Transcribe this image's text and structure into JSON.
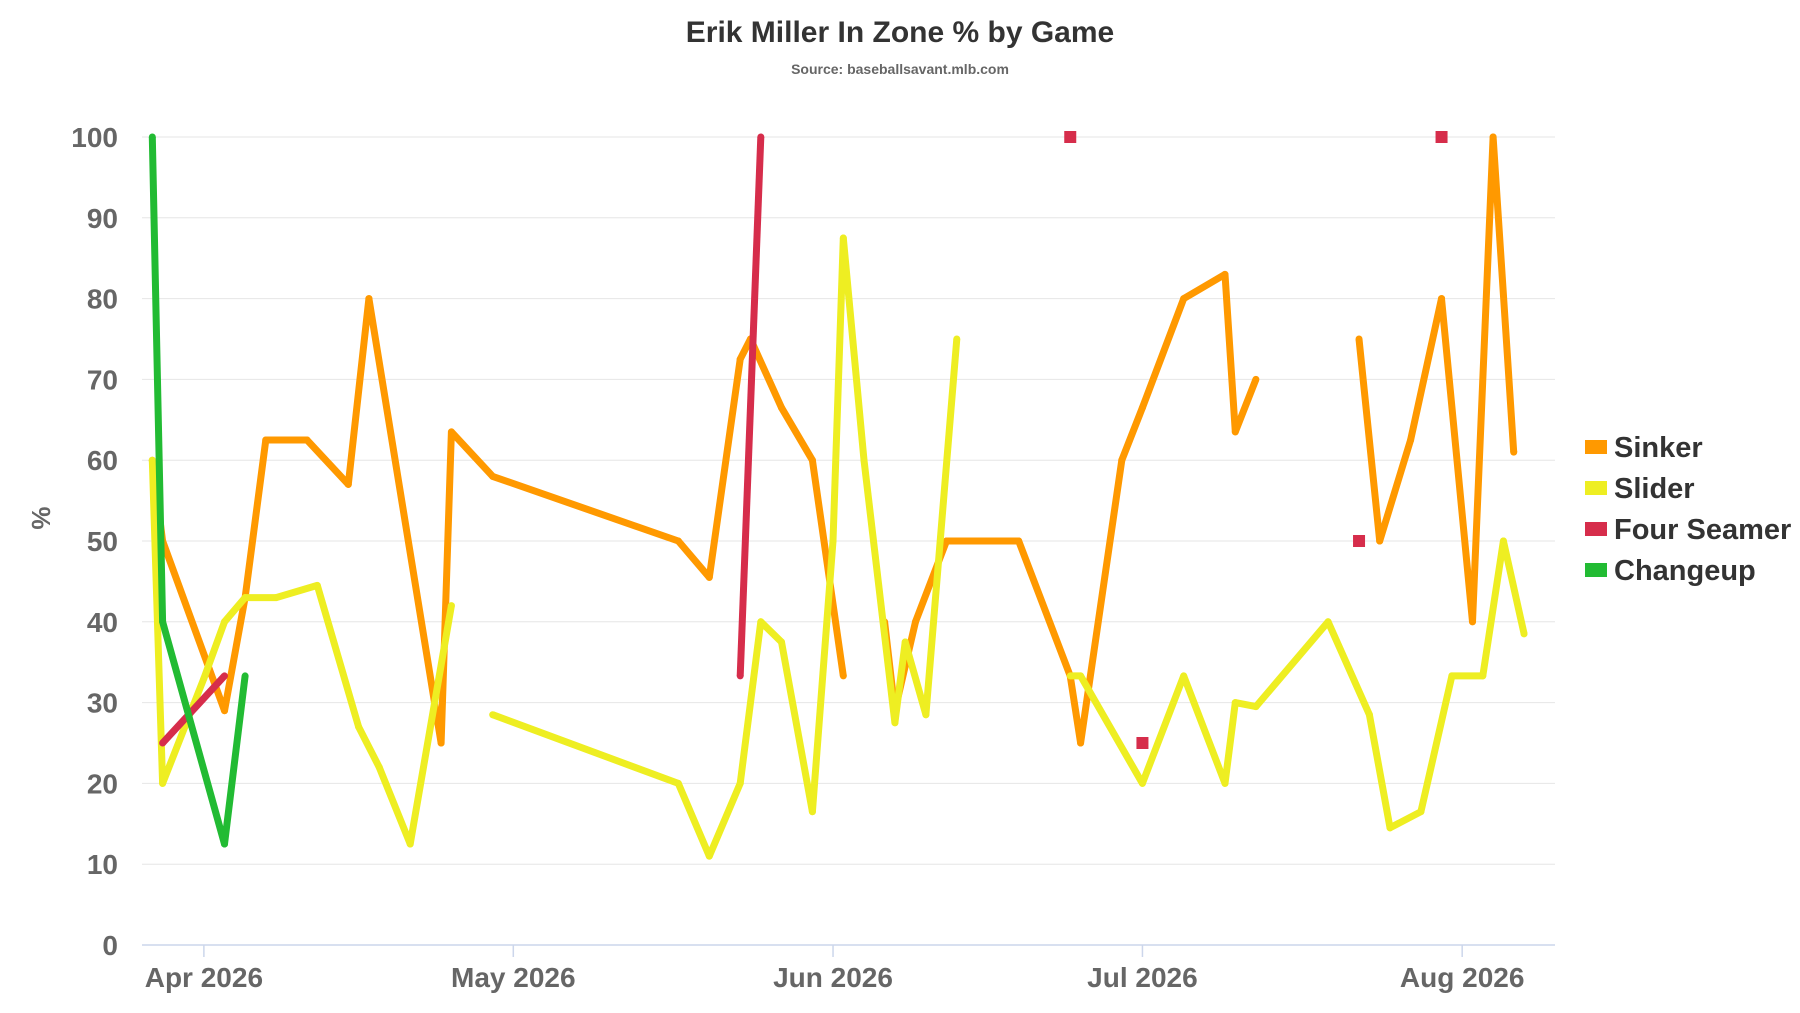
{
  "chart_data": {
    "type": "line",
    "title": "Erik Miller In Zone % by Game",
    "subtitle": "Source: baseballsavant.mlb.com",
    "ylabel": "%",
    "ylim": [
      0,
      100
    ],
    "yticks": [
      0,
      10,
      20,
      30,
      40,
      50,
      60,
      70,
      80,
      90,
      100
    ],
    "xlim": [
      "2026-03-26",
      "2026-08-10"
    ],
    "xticks": [
      {
        "date": "2026-04-01",
        "label": "Apr 2026"
      },
      {
        "date": "2026-05-01",
        "label": "May 2026"
      },
      {
        "date": "2026-06-01",
        "label": "Jun 2026"
      },
      {
        "date": "2026-07-01",
        "label": "Jul 2026"
      },
      {
        "date": "2026-08-01",
        "label": "Aug 2026"
      }
    ],
    "grid": true,
    "legend_position": "right",
    "series": [
      {
        "name": "Sinker",
        "color": "#ff9900",
        "points": [
          [
            "2026-03-27",
            60
          ],
          [
            "2026-03-28",
            50
          ],
          [
            "2026-04-03",
            29
          ],
          [
            "2026-04-05",
            43
          ],
          [
            "2026-04-07",
            62.5
          ],
          [
            "2026-04-11",
            62.5
          ],
          [
            "2026-04-15",
            57
          ],
          [
            "2026-04-17",
            80
          ],
          [
            "2026-04-24",
            25
          ],
          [
            "2026-04-25",
            63.5
          ],
          [
            "2026-04-29",
            58
          ],
          [
            "2026-05-17",
            50
          ],
          [
            "2026-05-20",
            45.5
          ],
          [
            "2026-05-23",
            72.5
          ],
          [
            "2026-05-24",
            75
          ],
          [
            "2026-05-27",
            66.5
          ],
          [
            "2026-05-30",
            60
          ],
          [
            "2026-06-02",
            33.3
          ],
          null,
          [
            "2026-06-06",
            40
          ],
          [
            "2026-06-07",
            29
          ],
          [
            "2026-06-09",
            40
          ],
          [
            "2026-06-12",
            50
          ],
          [
            "2026-06-19",
            50
          ],
          [
            "2026-06-24",
            33.3
          ],
          [
            "2026-06-25",
            25
          ],
          [
            "2026-06-29",
            60
          ],
          [
            "2026-07-01",
            66.5
          ],
          [
            "2026-07-05",
            80
          ],
          [
            "2026-07-09",
            83
          ],
          [
            "2026-07-10",
            63.5
          ],
          [
            "2026-07-12",
            70
          ],
          null,
          [
            "2026-07-22",
            75
          ],
          [
            "2026-07-24",
            50
          ],
          [
            "2026-07-27",
            62.5
          ],
          [
            "2026-07-30",
            80
          ],
          [
            "2026-08-02",
            40
          ],
          [
            "2026-08-04",
            100
          ],
          [
            "2026-08-06",
            61
          ]
        ]
      },
      {
        "name": "Slider",
        "color": "#eeee22",
        "points": [
          [
            "2026-03-27",
            60
          ],
          [
            "2026-03-28",
            20
          ],
          [
            "2026-04-01",
            33
          ],
          [
            "2026-04-03",
            40
          ],
          [
            "2026-04-05",
            43
          ],
          [
            "2026-04-08",
            43
          ],
          [
            "2026-04-12",
            44.5
          ],
          [
            "2026-04-16",
            27
          ],
          [
            "2026-04-18",
            22
          ],
          [
            "2026-04-21",
            12.5
          ],
          [
            "2026-04-25",
            42
          ],
          null,
          [
            "2026-04-29",
            28.5
          ],
          [
            "2026-05-17",
            20
          ],
          [
            "2026-05-20",
            11
          ],
          [
            "2026-05-23",
            20
          ],
          [
            "2026-05-25",
            40
          ],
          [
            "2026-05-27",
            37.5
          ],
          [
            "2026-05-30",
            16.5
          ],
          [
            "2026-06-01",
            50
          ],
          [
            "2026-06-02",
            87.5
          ],
          [
            "2026-06-04",
            60
          ],
          [
            "2026-06-07",
            27.5
          ],
          [
            "2026-06-08",
            37.5
          ],
          [
            "2026-06-10",
            28.5
          ],
          [
            "2026-06-13",
            75
          ],
          null,
          [
            "2026-06-24",
            33.3
          ],
          [
            "2026-06-25",
            33.3
          ],
          [
            "2026-07-01",
            20
          ],
          [
            "2026-07-05",
            33.3
          ],
          [
            "2026-07-09",
            20
          ],
          [
            "2026-07-10",
            30
          ],
          [
            "2026-07-12",
            29.5
          ],
          [
            "2026-07-19",
            40
          ],
          [
            "2026-07-23",
            28.5
          ],
          [
            "2026-07-25",
            14.5
          ],
          [
            "2026-07-28",
            16.5
          ],
          [
            "2026-07-31",
            33.3
          ],
          [
            "2026-08-03",
            33.3
          ],
          [
            "2026-08-05",
            50
          ],
          [
            "2026-08-07",
            38.5
          ]
        ]
      },
      {
        "name": "Four Seamer",
        "color": "#d62d4b",
        "points": [
          [
            "2026-03-28",
            25
          ],
          [
            "2026-04-03",
            33.3
          ],
          null,
          [
            "2026-05-23",
            33.3
          ],
          [
            "2026-05-25",
            100
          ],
          null,
          [
            "2026-06-24",
            100
          ],
          null,
          [
            "2026-07-01",
            25
          ],
          null,
          [
            "2026-07-22",
            50
          ],
          null,
          [
            "2026-07-30",
            100
          ]
        ]
      },
      {
        "name": "Changeup",
        "color": "#22bb33",
        "points": [
          [
            "2026-03-27",
            100
          ],
          [
            "2026-03-28",
            40
          ],
          [
            "2026-04-03",
            12.5
          ],
          [
            "2026-04-05",
            33.3
          ]
        ]
      }
    ]
  }
}
